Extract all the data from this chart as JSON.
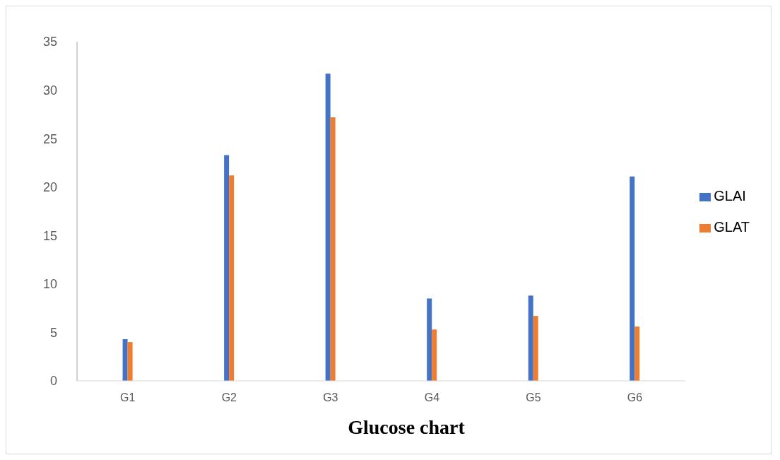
{
  "chart_data": {
    "type": "bar",
    "title": "Glucose chart",
    "categories": [
      "G1",
      "G2",
      "G3",
      "G4",
      "G5",
      "G6"
    ],
    "series": [
      {
        "name": "GLAI",
        "color": "#4472c4",
        "values": [
          4.3,
          23.3,
          31.7,
          8.5,
          8.8,
          21.1
        ]
      },
      {
        "name": "GLAT",
        "color": "#ed7d31",
        "values": [
          4.0,
          21.2,
          27.2,
          5.3,
          6.7,
          5.6
        ]
      }
    ],
    "ylim": [
      0,
      35
    ],
    "yticks": [
      0,
      5,
      10,
      15,
      20,
      25,
      30,
      35
    ],
    "grid": false,
    "legend": "right"
  }
}
